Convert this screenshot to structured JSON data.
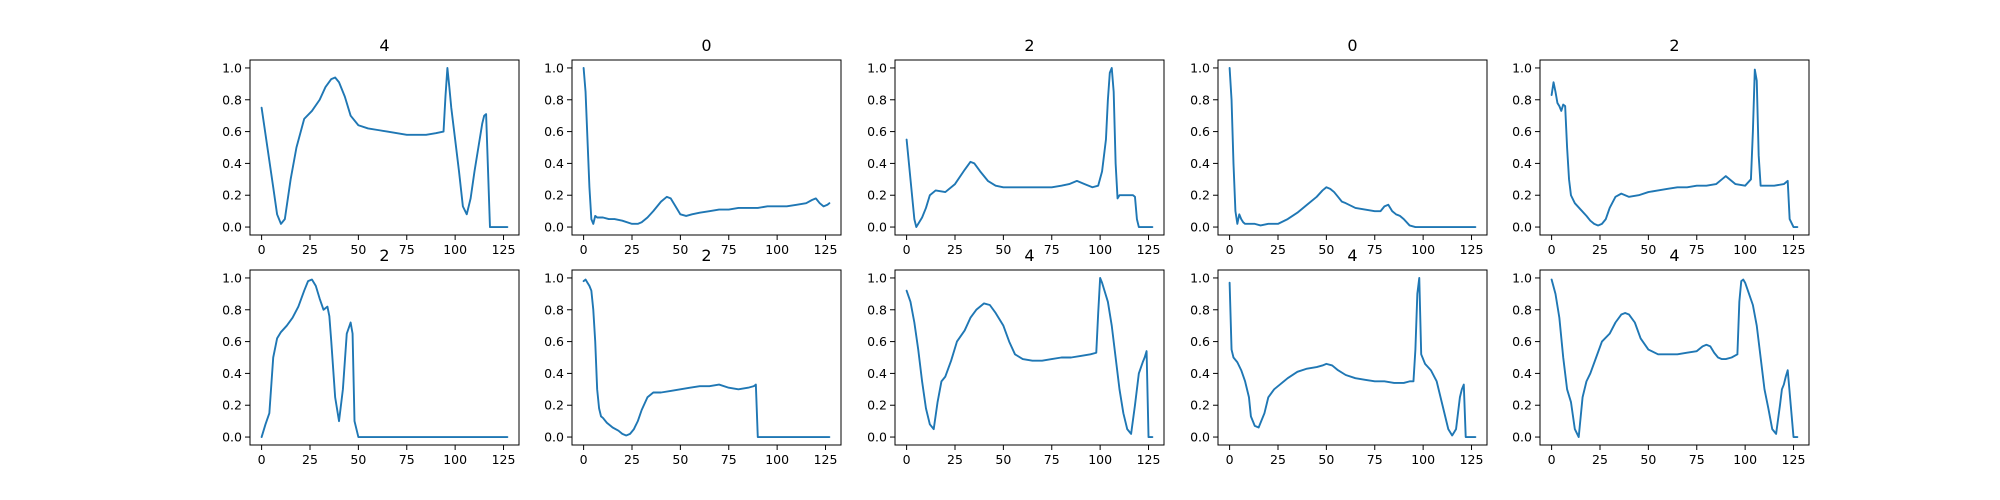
{
  "colors": {
    "line": "#1f77b4",
    "axes": "#000000",
    "background": "#ffffff"
  },
  "chart_data": [
    {
      "type": "line",
      "title": "4",
      "xlim": [
        -6,
        133
      ],
      "ylim": [
        -0.05,
        1.05
      ],
      "xticks": [
        0,
        25,
        50,
        75,
        100,
        125
      ],
      "yticks": [
        "0.0",
        "0.2",
        "0.4",
        "0.6",
        "0.8",
        "1.0"
      ],
      "x": [
        0,
        3,
        6,
        8,
        10,
        12,
        15,
        18,
        22,
        26,
        30,
        33,
        36,
        38,
        40,
        43,
        46,
        50,
        55,
        60,
        65,
        70,
        75,
        80,
        85,
        90,
        94,
        95,
        96,
        97,
        98,
        100,
        102,
        104,
        106,
        108,
        110,
        112,
        114,
        115,
        116,
        118,
        120,
        123,
        125,
        127
      ],
      "y": [
        0.75,
        0.5,
        0.25,
        0.08,
        0.02,
        0.05,
        0.3,
        0.5,
        0.68,
        0.73,
        0.8,
        0.88,
        0.93,
        0.94,
        0.91,
        0.82,
        0.7,
        0.64,
        0.62,
        0.61,
        0.6,
        0.59,
        0.58,
        0.58,
        0.58,
        0.59,
        0.6,
        0.82,
        1.0,
        0.88,
        0.75,
        0.55,
        0.35,
        0.13,
        0.08,
        0.18,
        0.35,
        0.5,
        0.65,
        0.7,
        0.71,
        0.0,
        0.0,
        0.0,
        0.0,
        0.0
      ]
    },
    {
      "type": "line",
      "title": "0",
      "xlim": [
        -6,
        133
      ],
      "ylim": [
        -0.05,
        1.05
      ],
      "xticks": [
        0,
        25,
        50,
        75,
        100,
        125
      ],
      "yticks": [
        "0.0",
        "0.2",
        "0.4",
        "0.6",
        "0.8",
        "1.0"
      ],
      "x": [
        0,
        1,
        2,
        3,
        4,
        5,
        6,
        7,
        8,
        10,
        13,
        16,
        20,
        25,
        28,
        30,
        33,
        36,
        40,
        43,
        45,
        47,
        50,
        53,
        56,
        60,
        65,
        70,
        75,
        80,
        85,
        90,
        95,
        100,
        105,
        110,
        115,
        118,
        120,
        122,
        124,
        126,
        127
      ],
      "y": [
        1.0,
        0.85,
        0.55,
        0.25,
        0.05,
        0.02,
        0.07,
        0.06,
        0.06,
        0.06,
        0.05,
        0.05,
        0.04,
        0.02,
        0.02,
        0.03,
        0.06,
        0.1,
        0.16,
        0.19,
        0.18,
        0.14,
        0.08,
        0.07,
        0.08,
        0.09,
        0.1,
        0.11,
        0.11,
        0.12,
        0.12,
        0.12,
        0.13,
        0.13,
        0.13,
        0.14,
        0.15,
        0.17,
        0.18,
        0.15,
        0.13,
        0.14,
        0.15
      ]
    },
    {
      "type": "line",
      "title": "2",
      "xlim": [
        -6,
        133
      ],
      "ylim": [
        -0.05,
        1.05
      ],
      "xticks": [
        0,
        25,
        50,
        75,
        100,
        125
      ],
      "yticks": [
        "0.0",
        "0.2",
        "0.4",
        "0.6",
        "0.8",
        "1.0"
      ],
      "x": [
        0,
        2,
        4,
        5,
        6,
        8,
        10,
        12,
        15,
        20,
        25,
        30,
        33,
        35,
        38,
        42,
        46,
        50,
        55,
        60,
        65,
        70,
        75,
        80,
        84,
        88,
        92,
        96,
        99,
        101,
        103,
        104,
        105,
        106,
        107,
        108,
        109,
        110,
        112,
        115,
        117,
        118,
        119,
        120,
        123,
        125,
        127
      ],
      "y": [
        0.55,
        0.3,
        0.05,
        0.0,
        0.02,
        0.06,
        0.12,
        0.2,
        0.23,
        0.22,
        0.27,
        0.36,
        0.41,
        0.4,
        0.35,
        0.29,
        0.26,
        0.25,
        0.25,
        0.25,
        0.25,
        0.25,
        0.25,
        0.26,
        0.27,
        0.29,
        0.27,
        0.25,
        0.26,
        0.35,
        0.55,
        0.8,
        0.97,
        1.0,
        0.85,
        0.4,
        0.18,
        0.2,
        0.2,
        0.2,
        0.2,
        0.19,
        0.05,
        0.0,
        0.0,
        0.0,
        0.0
      ]
    },
    {
      "type": "line",
      "title": "0",
      "xlim": [
        -6,
        133
      ],
      "ylim": [
        -0.05,
        1.05
      ],
      "xticks": [
        0,
        25,
        50,
        75,
        100,
        125
      ],
      "yticks": [
        "0.0",
        "0.2",
        "0.4",
        "0.6",
        "0.8",
        "1.0"
      ],
      "x": [
        0,
        1,
        2,
        3,
        4,
        5,
        6,
        7,
        8,
        10,
        13,
        16,
        20,
        25,
        30,
        35,
        40,
        45,
        48,
        50,
        52,
        54,
        56,
        58,
        60,
        65,
        70,
        75,
        78,
        80,
        82,
        84,
        86,
        88,
        90,
        93,
        96,
        100,
        105,
        110,
        115,
        120,
        125,
        127
      ],
      "y": [
        1.0,
        0.8,
        0.4,
        0.1,
        0.02,
        0.08,
        0.05,
        0.03,
        0.02,
        0.02,
        0.02,
        0.01,
        0.02,
        0.02,
        0.05,
        0.09,
        0.14,
        0.19,
        0.23,
        0.25,
        0.24,
        0.22,
        0.19,
        0.16,
        0.15,
        0.12,
        0.11,
        0.1,
        0.1,
        0.13,
        0.14,
        0.1,
        0.08,
        0.07,
        0.05,
        0.01,
        0.0,
        0.0,
        0.0,
        0.0,
        0.0,
        0.0,
        0.0,
        0.0
      ]
    },
    {
      "type": "line",
      "title": "2",
      "xlim": [
        -6,
        133
      ],
      "ylim": [
        -0.05,
        1.05
      ],
      "xticks": [
        0,
        25,
        50,
        75,
        100,
        125
      ],
      "yticks": [
        "0.0",
        "0.2",
        "0.4",
        "0.6",
        "0.8",
        "1.0"
      ],
      "x": [
        0,
        1,
        2,
        3,
        4,
        5,
        6,
        7,
        8,
        9,
        10,
        12,
        15,
        18,
        20,
        22,
        24,
        26,
        28,
        30,
        33,
        36,
        40,
        45,
        50,
        55,
        60,
        65,
        70,
        75,
        80,
        85,
        88,
        90,
        95,
        100,
        103,
        104,
        105,
        106,
        107,
        108,
        110,
        115,
        120,
        122,
        123,
        125,
        127
      ],
      "y": [
        0.83,
        0.91,
        0.85,
        0.78,
        0.76,
        0.73,
        0.77,
        0.76,
        0.5,
        0.3,
        0.2,
        0.15,
        0.11,
        0.07,
        0.04,
        0.02,
        0.01,
        0.02,
        0.05,
        0.12,
        0.19,
        0.21,
        0.19,
        0.2,
        0.22,
        0.23,
        0.24,
        0.25,
        0.25,
        0.26,
        0.26,
        0.27,
        0.3,
        0.32,
        0.27,
        0.26,
        0.3,
        0.6,
        0.99,
        0.92,
        0.45,
        0.26,
        0.26,
        0.26,
        0.27,
        0.29,
        0.05,
        0.0,
        0.0
      ]
    },
    {
      "type": "line",
      "title": "2",
      "xlim": [
        -6,
        133
      ],
      "ylim": [
        -0.05,
        1.05
      ],
      "xticks": [
        0,
        25,
        50,
        75,
        100,
        125
      ],
      "yticks": [
        "0.0",
        "0.2",
        "0.4",
        "0.6",
        "0.8",
        "1.0"
      ],
      "x": [
        0,
        2,
        4,
        6,
        8,
        10,
        13,
        16,
        19,
        22,
        24,
        26,
        28,
        30,
        32,
        34,
        35,
        36,
        38,
        40,
        42,
        44,
        46,
        47,
        48,
        50,
        60,
        75,
        90,
        100,
        110,
        120,
        127
      ],
      "y": [
        0.0,
        0.08,
        0.15,
        0.5,
        0.62,
        0.66,
        0.7,
        0.75,
        0.82,
        0.92,
        0.98,
        0.99,
        0.95,
        0.87,
        0.8,
        0.82,
        0.76,
        0.6,
        0.25,
        0.1,
        0.3,
        0.65,
        0.72,
        0.65,
        0.1,
        0.0,
        0.0,
        0.0,
        0.0,
        0.0,
        0.0,
        0.0,
        0.0
      ]
    },
    {
      "type": "line",
      "title": "2",
      "xlim": [
        -6,
        133
      ],
      "ylim": [
        -0.05,
        1.05
      ],
      "xticks": [
        0,
        25,
        50,
        75,
        100,
        125
      ],
      "yticks": [
        "0.0",
        "0.2",
        "0.4",
        "0.6",
        "0.8",
        "1.0"
      ],
      "x": [
        0,
        1,
        2,
        3,
        4,
        5,
        6,
        7,
        8,
        9,
        10,
        12,
        15,
        18,
        20,
        22,
        24,
        26,
        28,
        30,
        33,
        36,
        40,
        45,
        50,
        55,
        60,
        65,
        70,
        75,
        80,
        85,
        88,
        89,
        90,
        95,
        100,
        110,
        120,
        127
      ],
      "y": [
        0.98,
        0.99,
        0.97,
        0.95,
        0.92,
        0.8,
        0.6,
        0.3,
        0.18,
        0.13,
        0.12,
        0.09,
        0.06,
        0.04,
        0.02,
        0.01,
        0.02,
        0.05,
        0.1,
        0.17,
        0.25,
        0.28,
        0.28,
        0.29,
        0.3,
        0.31,
        0.32,
        0.32,
        0.33,
        0.31,
        0.3,
        0.31,
        0.32,
        0.33,
        0.0,
        0.0,
        0.0,
        0.0,
        0.0,
        0.0
      ]
    },
    {
      "type": "line",
      "title": "4",
      "xlim": [
        -6,
        133
      ],
      "ylim": [
        -0.05,
        1.05
      ],
      "xticks": [
        0,
        25,
        50,
        75,
        100,
        125
      ],
      "yticks": [
        "0.0",
        "0.2",
        "0.4",
        "0.6",
        "0.8",
        "1.0"
      ],
      "x": [
        0,
        2,
        4,
        6,
        8,
        10,
        12,
        14,
        16,
        18,
        20,
        23,
        26,
        30,
        33,
        36,
        40,
        43,
        46,
        50,
        53,
        56,
        60,
        65,
        70,
        75,
        80,
        85,
        90,
        95,
        98,
        99,
        100,
        101,
        102,
        104,
        106,
        108,
        110,
        112,
        114,
        116,
        118,
        120,
        122,
        123,
        124,
        125,
        127
      ],
      "y": [
        0.92,
        0.85,
        0.72,
        0.55,
        0.35,
        0.18,
        0.08,
        0.05,
        0.22,
        0.35,
        0.38,
        0.48,
        0.6,
        0.67,
        0.75,
        0.8,
        0.84,
        0.83,
        0.78,
        0.7,
        0.6,
        0.52,
        0.49,
        0.48,
        0.48,
        0.49,
        0.5,
        0.5,
        0.51,
        0.52,
        0.53,
        0.78,
        1.0,
        0.97,
        0.93,
        0.85,
        0.7,
        0.5,
        0.3,
        0.15,
        0.05,
        0.02,
        0.2,
        0.4,
        0.47,
        0.5,
        0.54,
        0.0,
        0.0
      ]
    },
    {
      "type": "line",
      "title": "4",
      "xlim": [
        -6,
        133
      ],
      "ylim": [
        -0.05,
        1.05
      ],
      "xticks": [
        0,
        25,
        50,
        75,
        100,
        125
      ],
      "yticks": [
        "0.0",
        "0.2",
        "0.4",
        "0.6",
        "0.8",
        "1.0"
      ],
      "x": [
        0,
        1,
        2,
        4,
        6,
        8,
        10,
        11,
        13,
        15,
        18,
        20,
        23,
        26,
        30,
        35,
        40,
        45,
        48,
        50,
        53,
        56,
        60,
        65,
        70,
        75,
        80,
        85,
        90,
        93,
        95,
        96,
        97,
        98,
        99,
        101,
        104,
        107,
        110,
        113,
        115,
        117,
        119,
        120,
        121,
        122,
        125,
        127
      ],
      "y": [
        0.97,
        0.55,
        0.5,
        0.47,
        0.42,
        0.35,
        0.25,
        0.13,
        0.07,
        0.06,
        0.15,
        0.25,
        0.3,
        0.33,
        0.37,
        0.41,
        0.43,
        0.44,
        0.45,
        0.46,
        0.45,
        0.42,
        0.39,
        0.37,
        0.36,
        0.35,
        0.35,
        0.34,
        0.34,
        0.35,
        0.35,
        0.55,
        0.9,
        1.0,
        0.52,
        0.46,
        0.42,
        0.35,
        0.2,
        0.05,
        0.01,
        0.05,
        0.25,
        0.3,
        0.33,
        0.0,
        0.0,
        0.0
      ]
    },
    {
      "type": "line",
      "title": "4",
      "xlim": [
        -6,
        133
      ],
      "ylim": [
        -0.05,
        1.05
      ],
      "xticks": [
        0,
        25,
        50,
        75,
        100,
        125
      ],
      "yticks": [
        "0.0",
        "0.2",
        "0.4",
        "0.6",
        "0.8",
        "1.0"
      ],
      "x": [
        0,
        2,
        4,
        6,
        8,
        10,
        12,
        14,
        16,
        18,
        20,
        23,
        26,
        30,
        33,
        36,
        38,
        40,
        43,
        46,
        50,
        55,
        60,
        65,
        70,
        75,
        78,
        80,
        82,
        84,
        86,
        88,
        90,
        93,
        96,
        97,
        98,
        99,
        100,
        102,
        104,
        106,
        108,
        110,
        112,
        114,
        116,
        118,
        119,
        120,
        121,
        122,
        125,
        127
      ],
      "y": [
        0.99,
        0.9,
        0.75,
        0.5,
        0.3,
        0.22,
        0.05,
        0.0,
        0.25,
        0.35,
        0.4,
        0.5,
        0.6,
        0.65,
        0.72,
        0.77,
        0.78,
        0.77,
        0.72,
        0.62,
        0.55,
        0.52,
        0.52,
        0.52,
        0.53,
        0.54,
        0.57,
        0.58,
        0.57,
        0.53,
        0.5,
        0.49,
        0.49,
        0.5,
        0.52,
        0.85,
        0.98,
        0.99,
        0.97,
        0.9,
        0.83,
        0.7,
        0.5,
        0.3,
        0.18,
        0.05,
        0.02,
        0.2,
        0.3,
        0.33,
        0.38,
        0.42,
        0.0,
        0.0
      ]
    }
  ]
}
